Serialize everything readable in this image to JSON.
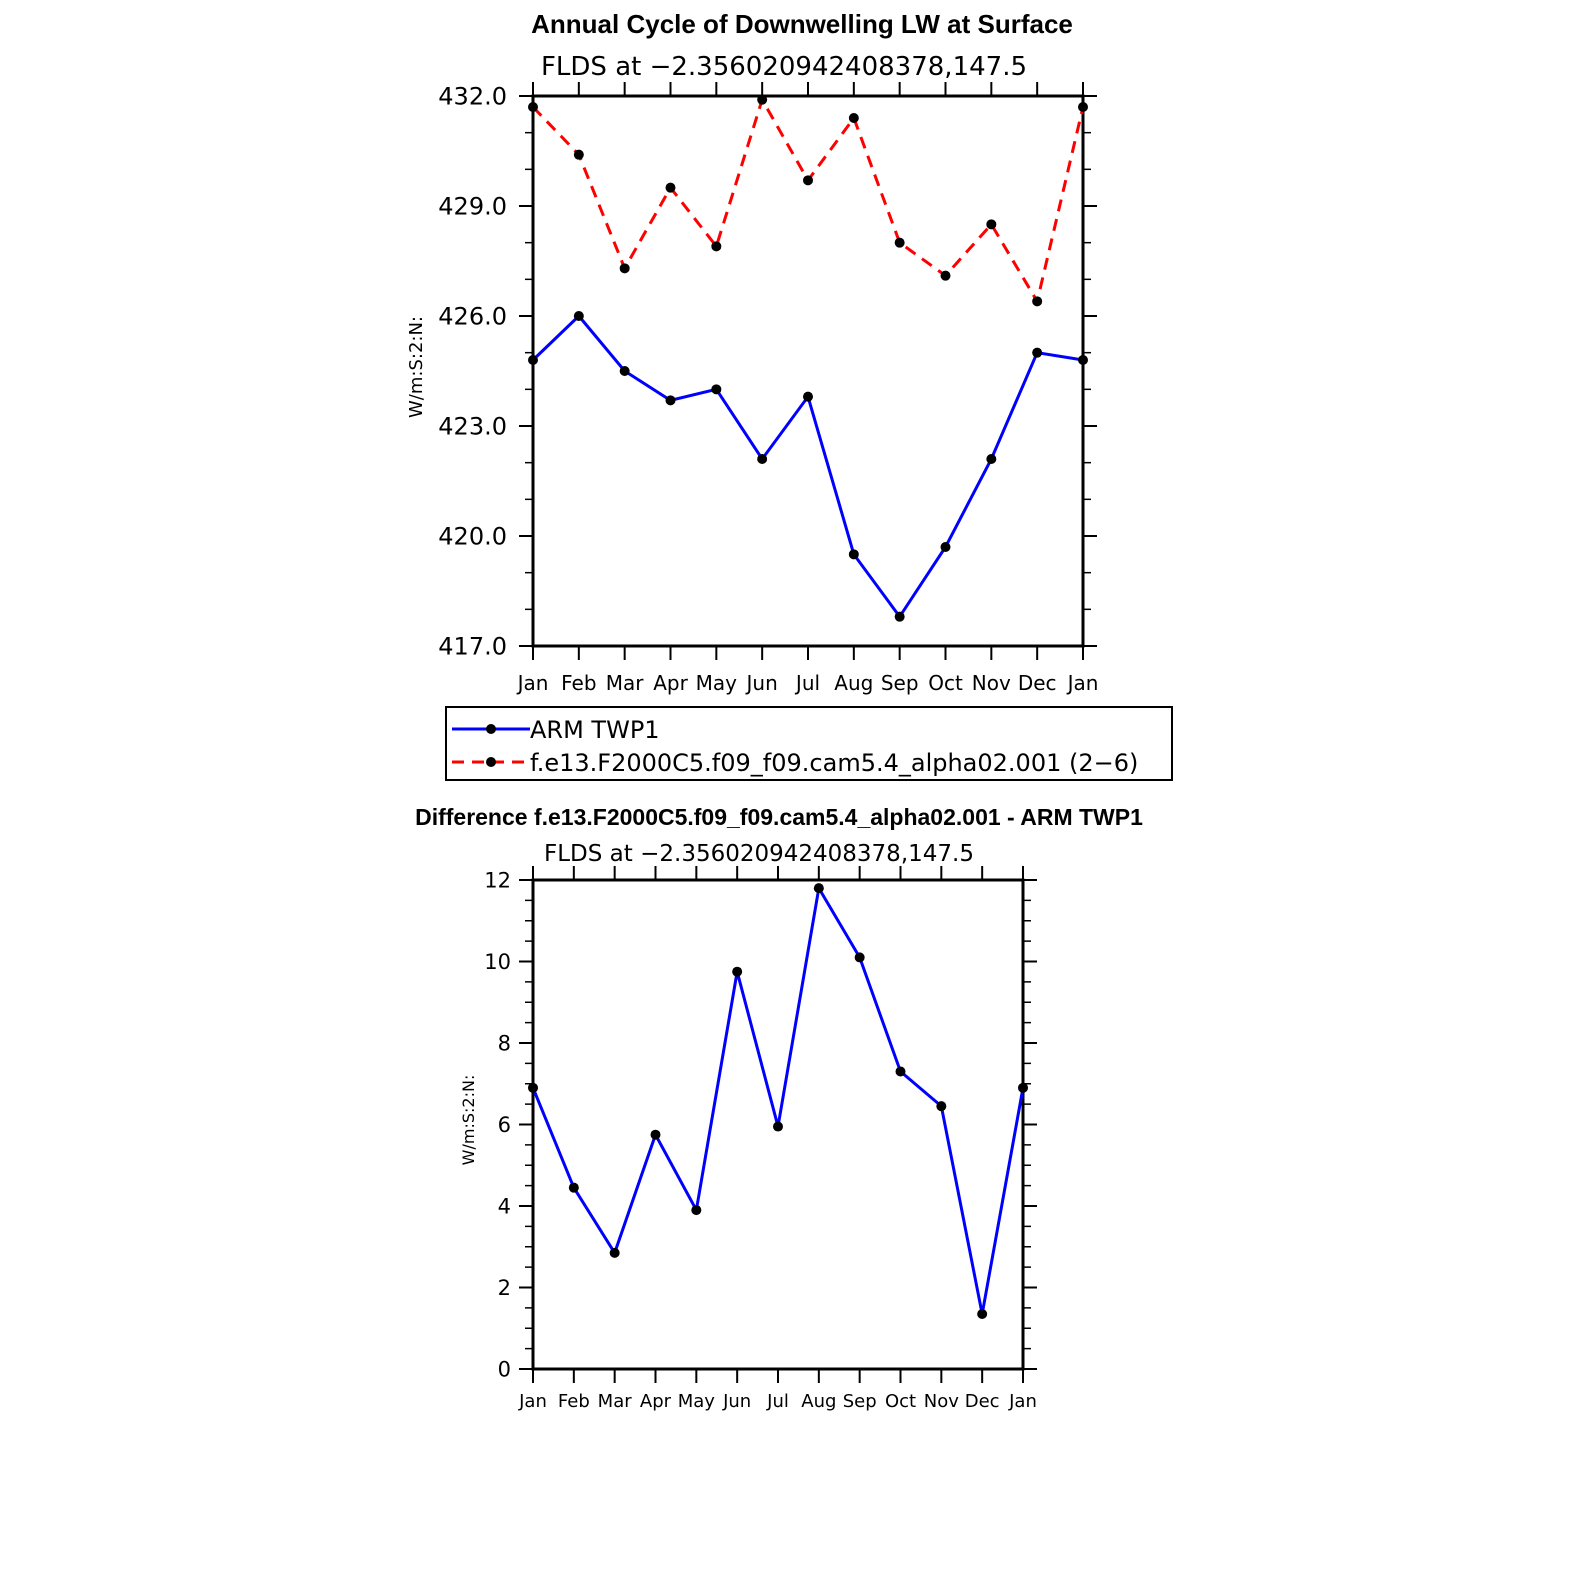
{
  "chart_data": [
    {
      "type": "line",
      "title": "Annual Cycle of Downwelling LW at Surface",
      "subtitle": "FLDS at −2.356020942408378,147.5",
      "xlabel": "",
      "ylabel": "W/m:S:2:N:",
      "categories": [
        "Jan",
        "Feb",
        "Mar",
        "Apr",
        "May",
        "Jun",
        "Jul",
        "Aug",
        "Sep",
        "Oct",
        "Nov",
        "Dec",
        "Jan"
      ],
      "ylim": [
        417.0,
        432.0
      ],
      "yticks": [
        417.0,
        420.0,
        423.0,
        426.0,
        429.0,
        432.0
      ],
      "ytick_labels": [
        "417.0",
        "420.0",
        "423.0",
        "426.0",
        "429.0",
        "432.0"
      ],
      "series": [
        {
          "name": "ARM TWP1",
          "color": "#0000ff",
          "dash": "solid",
          "values": [
            424.8,
            426.0,
            424.5,
            423.7,
            424.0,
            422.1,
            423.8,
            419.5,
            417.8,
            419.7,
            422.1,
            425.0,
            424.8
          ]
        },
        {
          "name": "f.e13.F2000C5.f09_f09.cam5.4_alpha02.001 (2−6)",
          "color": "#ff0000",
          "dash": "dashed",
          "values": [
            431.7,
            430.4,
            427.3,
            429.5,
            427.9,
            431.9,
            429.7,
            431.4,
            428.0,
            427.1,
            428.5,
            426.4,
            431.7
          ]
        }
      ],
      "legend": "below"
    },
    {
      "type": "line",
      "title": "Difference f.e13.F2000C5.f09_f09.cam5.4_alpha02.001 - ARM TWP1",
      "subtitle": "FLDS at −2.356020942408378,147.5",
      "xlabel": "",
      "ylabel": "W/m:S:2:N:",
      "categories": [
        "Jan",
        "Feb",
        "Mar",
        "Apr",
        "May",
        "Jun",
        "Jul",
        "Aug",
        "Sep",
        "Oct",
        "Nov",
        "Dec",
        "Jan"
      ],
      "ylim": [
        0,
        12
      ],
      "yticks": [
        0,
        2,
        4,
        6,
        8,
        10,
        12
      ],
      "ytick_labels": [
        "0",
        "2",
        "4",
        "6",
        "8",
        "10",
        "12"
      ],
      "series": [
        {
          "name": "Difference",
          "color": "#0000ff",
          "dash": "solid",
          "values": [
            6.9,
            4.45,
            2.85,
            5.75,
            3.9,
            9.75,
            5.95,
            11.8,
            10.1,
            7.3,
            6.45,
            1.35,
            6.9
          ]
        }
      ]
    }
  ]
}
